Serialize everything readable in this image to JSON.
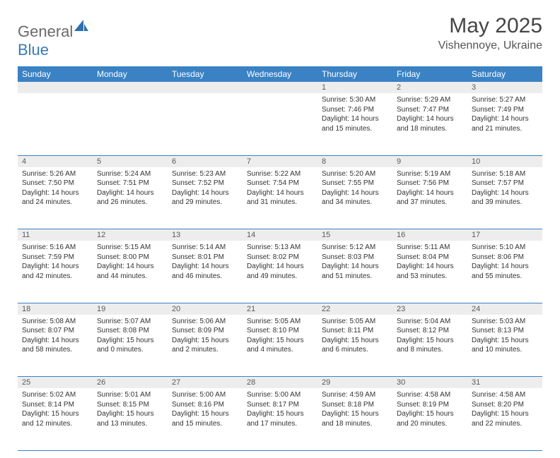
{
  "brand": {
    "part1": "General",
    "part2": "Blue"
  },
  "title": "May 2025",
  "location": "Vishennoye, Ukraine",
  "theme": {
    "header_bg": "#3a82c4",
    "header_fg": "#ffffff",
    "daynum_bg": "#ededed",
    "rule_color": "#3a82c4",
    "text_color": "#333333"
  },
  "weekdays": [
    "Sunday",
    "Monday",
    "Tuesday",
    "Wednesday",
    "Thursday",
    "Friday",
    "Saturday"
  ],
  "weeks": [
    [
      null,
      null,
      null,
      null,
      {
        "n": "1",
        "sr": "5:30 AM",
        "ss": "7:46 PM",
        "dl": "14 hours and 15 minutes."
      },
      {
        "n": "2",
        "sr": "5:29 AM",
        "ss": "7:47 PM",
        "dl": "14 hours and 18 minutes."
      },
      {
        "n": "3",
        "sr": "5:27 AM",
        "ss": "7:49 PM",
        "dl": "14 hours and 21 minutes."
      }
    ],
    [
      {
        "n": "4",
        "sr": "5:26 AM",
        "ss": "7:50 PM",
        "dl": "14 hours and 24 minutes."
      },
      {
        "n": "5",
        "sr": "5:24 AM",
        "ss": "7:51 PM",
        "dl": "14 hours and 26 minutes."
      },
      {
        "n": "6",
        "sr": "5:23 AM",
        "ss": "7:52 PM",
        "dl": "14 hours and 29 minutes."
      },
      {
        "n": "7",
        "sr": "5:22 AM",
        "ss": "7:54 PM",
        "dl": "14 hours and 31 minutes."
      },
      {
        "n": "8",
        "sr": "5:20 AM",
        "ss": "7:55 PM",
        "dl": "14 hours and 34 minutes."
      },
      {
        "n": "9",
        "sr": "5:19 AM",
        "ss": "7:56 PM",
        "dl": "14 hours and 37 minutes."
      },
      {
        "n": "10",
        "sr": "5:18 AM",
        "ss": "7:57 PM",
        "dl": "14 hours and 39 minutes."
      }
    ],
    [
      {
        "n": "11",
        "sr": "5:16 AM",
        "ss": "7:59 PM",
        "dl": "14 hours and 42 minutes."
      },
      {
        "n": "12",
        "sr": "5:15 AM",
        "ss": "8:00 PM",
        "dl": "14 hours and 44 minutes."
      },
      {
        "n": "13",
        "sr": "5:14 AM",
        "ss": "8:01 PM",
        "dl": "14 hours and 46 minutes."
      },
      {
        "n": "14",
        "sr": "5:13 AM",
        "ss": "8:02 PM",
        "dl": "14 hours and 49 minutes."
      },
      {
        "n": "15",
        "sr": "5:12 AM",
        "ss": "8:03 PM",
        "dl": "14 hours and 51 minutes."
      },
      {
        "n": "16",
        "sr": "5:11 AM",
        "ss": "8:04 PM",
        "dl": "14 hours and 53 minutes."
      },
      {
        "n": "17",
        "sr": "5:10 AM",
        "ss": "8:06 PM",
        "dl": "14 hours and 55 minutes."
      }
    ],
    [
      {
        "n": "18",
        "sr": "5:08 AM",
        "ss": "8:07 PM",
        "dl": "14 hours and 58 minutes."
      },
      {
        "n": "19",
        "sr": "5:07 AM",
        "ss": "8:08 PM",
        "dl": "15 hours and 0 minutes."
      },
      {
        "n": "20",
        "sr": "5:06 AM",
        "ss": "8:09 PM",
        "dl": "15 hours and 2 minutes."
      },
      {
        "n": "21",
        "sr": "5:05 AM",
        "ss": "8:10 PM",
        "dl": "15 hours and 4 minutes."
      },
      {
        "n": "22",
        "sr": "5:05 AM",
        "ss": "8:11 PM",
        "dl": "15 hours and 6 minutes."
      },
      {
        "n": "23",
        "sr": "5:04 AM",
        "ss": "8:12 PM",
        "dl": "15 hours and 8 minutes."
      },
      {
        "n": "24",
        "sr": "5:03 AM",
        "ss": "8:13 PM",
        "dl": "15 hours and 10 minutes."
      }
    ],
    [
      {
        "n": "25",
        "sr": "5:02 AM",
        "ss": "8:14 PM",
        "dl": "15 hours and 12 minutes."
      },
      {
        "n": "26",
        "sr": "5:01 AM",
        "ss": "8:15 PM",
        "dl": "15 hours and 13 minutes."
      },
      {
        "n": "27",
        "sr": "5:00 AM",
        "ss": "8:16 PM",
        "dl": "15 hours and 15 minutes."
      },
      {
        "n": "28",
        "sr": "5:00 AM",
        "ss": "8:17 PM",
        "dl": "15 hours and 17 minutes."
      },
      {
        "n": "29",
        "sr": "4:59 AM",
        "ss": "8:18 PM",
        "dl": "15 hours and 18 minutes."
      },
      {
        "n": "30",
        "sr": "4:58 AM",
        "ss": "8:19 PM",
        "dl": "15 hours and 20 minutes."
      },
      {
        "n": "31",
        "sr": "4:58 AM",
        "ss": "8:20 PM",
        "dl": "15 hours and 22 minutes."
      }
    ]
  ],
  "labels": {
    "sunrise": "Sunrise:",
    "sunset": "Sunset:",
    "daylight": "Daylight:"
  }
}
